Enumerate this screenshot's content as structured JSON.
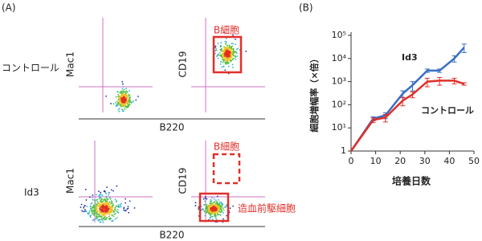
{
  "panel_a": {
    "label": "(A)",
    "row_labels": [
      "コントロール",
      "Id3"
    ],
    "y_labels": [
      "Mac1",
      "CD19"
    ],
    "x_label": "B220",
    "gate_b_cell": "B細胞",
    "gate_progenitor": "造血前駆細胞"
  },
  "chart_data": {
    "type": "line",
    "panel_label": "(B)",
    "xlabel": "培養日数",
    "ylabel": "細胞増幅率（×倍）",
    "log_y": true,
    "xlim": [
      0,
      50
    ],
    "xticks": [
      0,
      10,
      20,
      30,
      40,
      50
    ],
    "ylim": [
      1,
      100000
    ],
    "yticks": [
      1,
      {
        "value": 10,
        "label": "10¹"
      },
      {
        "value": 100,
        "label": "10²"
      },
      {
        "value": 1000,
        "label": "10³"
      },
      {
        "value": 10000,
        "label": "10⁴"
      },
      {
        "value": 100000,
        "label": "10⁵"
      }
    ],
    "x": [
      0,
      9,
      14,
      21,
      25,
      31,
      36,
      42,
      46
    ],
    "series": [
      {
        "name": "Id3",
        "color": "#3a6fc4",
        "values": [
          1,
          25,
          35,
          300,
          700,
          3000,
          3000,
          10000,
          30000
        ],
        "errors": [
          0,
          5,
          10,
          100,
          300,
          500,
          500,
          3000,
          12000
        ]
      },
      {
        "name": "コントロール",
        "color": "#e0302a",
        "values": [
          1,
          22,
          28,
          150,
          280,
          1000,
          1100,
          1100,
          800
        ],
        "errors": [
          0,
          5,
          10,
          60,
          80,
          400,
          400,
          300,
          100
        ]
      }
    ]
  }
}
